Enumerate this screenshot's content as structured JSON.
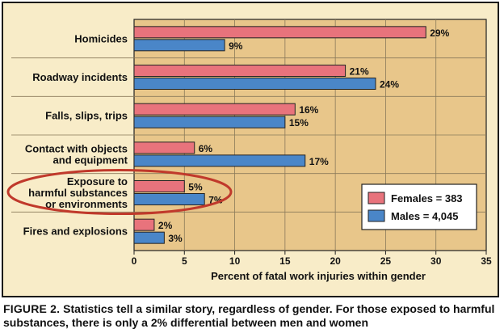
{
  "chart_data": {
    "type": "bar",
    "orientation": "horizontal",
    "categories": [
      [
        "Homicides"
      ],
      [
        "Roadway incidents"
      ],
      [
        "Falls, slips, trips"
      ],
      [
        "Contact with objects",
        "and equipment"
      ],
      [
        "Exposure to",
        "harmful substances",
        "or environments"
      ],
      [
        "Fires and explosions"
      ]
    ],
    "series": [
      {
        "name": "Females = 383",
        "values": [
          29,
          21,
          16,
          6,
          5,
          2
        ],
        "labels": [
          "29%",
          "21%",
          "16%",
          "6%",
          "5%",
          "2%"
        ],
        "color": "#e8737c"
      },
      {
        "name": "Males = 4,045",
        "values": [
          9,
          24,
          15,
          17,
          7,
          3
        ],
        "labels": [
          "9%",
          "24%",
          "15%",
          "17%",
          "7%",
          "3%"
        ],
        "color": "#4a86c8"
      }
    ],
    "xlabel": "Percent of fatal work injuries within gender",
    "xlim": [
      0,
      35
    ],
    "xticks": [
      "0",
      "5",
      "10",
      "15",
      "20",
      "25",
      "30",
      "35"
    ],
    "grid": true,
    "legend_position": "lower-right",
    "highlighted_category": 4,
    "highlight_color": "#c0392b",
    "plot_background": "#e8c68a"
  },
  "caption": {
    "figure_label": "FIGURE 2.",
    "text": " Statistics tell a similar story, regardless of gender. For those exposed to harmful substances, there is only a 2% differential between men and women"
  }
}
